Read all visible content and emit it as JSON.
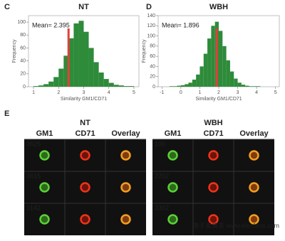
{
  "chart_data": [
    {
      "type": "histogram",
      "panel": "C",
      "title": "NT",
      "xlabel": "Similarity GM1/CD71",
      "ylabel": "Frequency",
      "annotation": "Mean= 2.395",
      "mean": 2.395,
      "color": "#2e8b3a",
      "mean_color": "#e0403a",
      "bins": [
        1.0,
        1.2,
        1.4,
        1.6,
        1.8,
        2.0,
        2.2,
        2.4,
        2.6,
        2.8,
        3.0,
        3.2,
        3.4,
        3.6,
        3.8,
        4.0,
        4.2,
        4.4,
        4.6,
        4.8,
        5.0
      ],
      "counts": [
        1,
        2,
        4,
        8,
        15,
        28,
        48,
        75,
        98,
        102,
        85,
        60,
        38,
        22,
        12,
        6,
        3,
        2,
        1,
        1
      ],
      "xlim": [
        0.8,
        5.2
      ],
      "xticks": [
        1,
        2,
        3,
        4,
        5
      ],
      "ylim": [
        0,
        110
      ],
      "yticks": [
        0,
        20,
        40,
        60,
        80,
        100
      ]
    },
    {
      "type": "histogram",
      "panel": "D",
      "title": "WBH",
      "xlabel": "Similarity GM1/CD71",
      "ylabel": "Frequency",
      "annotation": "Mean= 1.896",
      "mean": 1.896,
      "color": "#2e8b3a",
      "mean_color": "#e0403a",
      "bins": [
        -0.6,
        -0.4,
        -0.2,
        0.0,
        0.2,
        0.4,
        0.6,
        0.8,
        1.0,
        1.2,
        1.4,
        1.6,
        1.8,
        2.0,
        2.2,
        2.4,
        2.6,
        2.8,
        3.0,
        3.2,
        3.4,
        3.6,
        3.8,
        4.0,
        4.2
      ],
      "counts": [
        1,
        1,
        2,
        3,
        5,
        8,
        14,
        24,
        40,
        65,
        95,
        120,
        128,
        110,
        80,
        52,
        30,
        16,
        8,
        4,
        2,
        1,
        1,
        1
      ],
      "xlim": [
        -1.2,
        5.2
      ],
      "xticks": [
        -1,
        0,
        1,
        2,
        3,
        4,
        5
      ],
      "ylim": [
        0,
        140
      ],
      "yticks": [
        0,
        20,
        40,
        60,
        80,
        100,
        120,
        140
      ]
    }
  ],
  "image_panel": {
    "panel": "E",
    "groups": [
      {
        "title": "NT",
        "columns": [
          "GM1",
          "CD71",
          "Overlay"
        ],
        "cell_ids": [
          "3625",
          "3615",
          "3142"
        ]
      },
      {
        "title": "WBH",
        "columns": [
          "GM1",
          "CD71",
          "Overlay"
        ],
        "cell_ids": [
          "100",
          "2202",
          "3302"
        ]
      }
    ],
    "watermark": "电子发烧友 www.elecfans.com"
  }
}
